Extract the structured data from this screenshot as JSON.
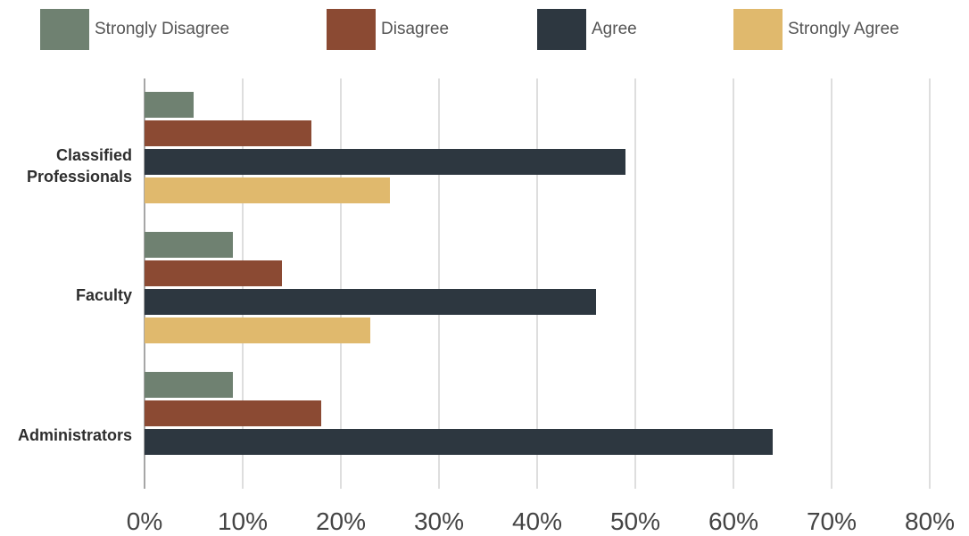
{
  "chart_data": {
    "type": "bar",
    "orientation": "horizontal",
    "categories": [
      "Classified Professionals",
      "Faculty",
      "Administrators"
    ],
    "series": [
      {
        "name": "Strongly Disagree",
        "color": "#6f8171",
        "values": [
          5,
          9,
          9
        ]
      },
      {
        "name": "Disagree",
        "color": "#8b4a33",
        "values": [
          17,
          14,
          18
        ]
      },
      {
        "name": "Agree",
        "color": "#2d3740",
        "values": [
          49,
          46,
          64
        ]
      },
      {
        "name": "Strongly Agree",
        "color": "#e0b96d",
        "values": [
          25,
          23,
          0
        ]
      }
    ],
    "xlim": [
      0,
      80
    ],
    "x_ticks": [
      "0%",
      "10%",
      "20%",
      "30%",
      "40%",
      "50%",
      "60%",
      "70%",
      "80%"
    ],
    "grid": true,
    "legend_position": "top"
  }
}
